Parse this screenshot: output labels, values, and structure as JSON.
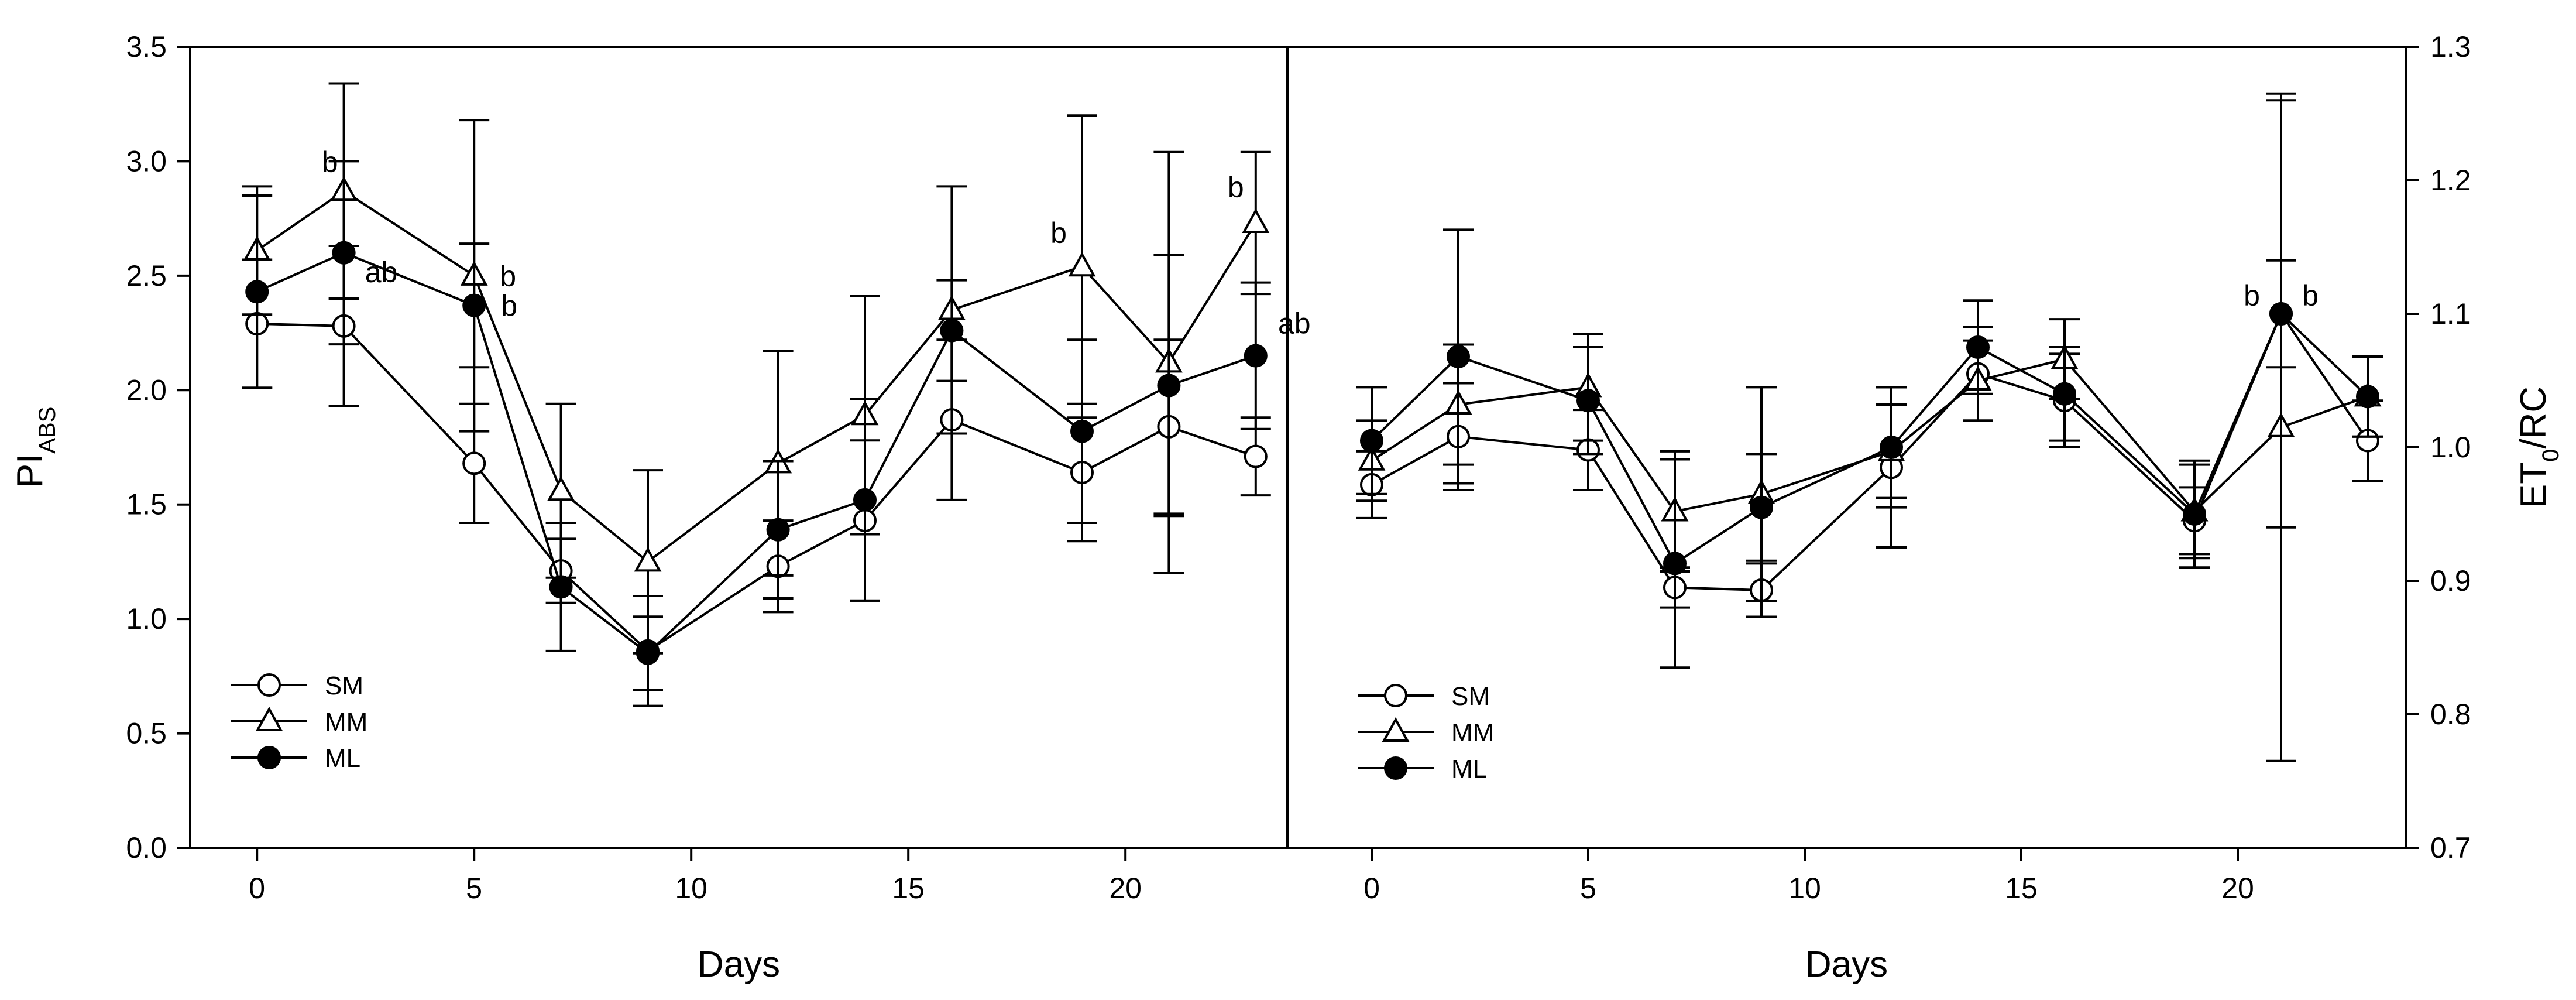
{
  "chart_data": [
    {
      "type": "line",
      "panel": "left",
      "ylabel_main": "PI",
      "ylabel_sub": "ABS",
      "xlabel": "Days",
      "xlim": [
        -1,
        24
      ],
      "ylim": [
        0,
        3.5
      ],
      "x_ticks": [
        0,
        5,
        10,
        15,
        20
      ],
      "y_ticks": [
        "0.0",
        "0.5",
        "1.0",
        "1.5",
        "2.0",
        "2.5",
        "3.0",
        "3.5"
      ],
      "x": [
        0,
        2,
        5,
        7,
        9,
        12,
        14,
        16,
        19,
        21,
        23
      ],
      "series": [
        {
          "name": "SM",
          "marker": "open-circle",
          "values": [
            2.29,
            2.28,
            1.68,
            1.21,
            0.86,
            1.23,
            1.43,
            1.87,
            1.64,
            1.84,
            1.71
          ],
          "errors": [
            0.28,
            0.35,
            0.26,
            0.14,
            0.24,
            0.2,
            0.35,
            0.35,
            0.3,
            0.38,
            0.17
          ]
        },
        {
          "name": "MM",
          "marker": "open-triangle",
          "values": [
            2.61,
            2.87,
            2.5,
            1.56,
            1.25,
            1.68,
            1.89,
            2.35,
            2.54,
            2.12,
            2.73
          ],
          "errors": [
            0.28,
            0.47,
            0.68,
            0.38,
            0.4,
            0.49,
            0.52,
            0.54,
            0.66,
            0.92,
            0.31
          ]
        },
        {
          "name": "ML",
          "marker": "filled-circle",
          "values": [
            2.43,
            2.6,
            2.37,
            1.14,
            0.85,
            1.39,
            1.52,
            2.26,
            1.82,
            2.02,
            2.15
          ],
          "errors": [
            0.42,
            0.4,
            0.27,
            0.28,
            0.16,
            0.3,
            0.44,
            0.22,
            0.4,
            0.57,
            0.32
          ]
        }
      ],
      "annotations": [
        {
          "text": "b",
          "x": 2,
          "series": "MM"
        },
        {
          "text": "ab",
          "x": 2,
          "series": "ML"
        },
        {
          "text": "b",
          "x": 5,
          "series": "MM"
        },
        {
          "text": "b",
          "x": 5,
          "series": "ML"
        },
        {
          "text": "b",
          "x": 19,
          "series": "MM"
        },
        {
          "text": "b",
          "x": 23,
          "series": "MM"
        },
        {
          "text": "ab",
          "x": 23,
          "series": "ML"
        }
      ],
      "legend": {
        "position": "bottom-left",
        "entries": [
          "SM",
          "MM",
          "ML"
        ]
      }
    },
    {
      "type": "line",
      "panel": "right",
      "ylabel_main": "ET",
      "ylabel_sub": "0",
      "ylabel_tail": "/RC",
      "xlabel": "Days",
      "xlim": [
        -1,
        24
      ],
      "ylim": [
        0.7,
        1.3
      ],
      "x_ticks": [
        0,
        5,
        10,
        15,
        20
      ],
      "y_ticks": [
        "0.7",
        "0.8",
        "0.9",
        "1.0",
        "1.1",
        "1.2",
        "1.3"
      ],
      "x": [
        0,
        2,
        5,
        7,
        9,
        12,
        14,
        16,
        19,
        21,
        23
      ],
      "series": [
        {
          "name": "SM",
          "marker": "open-circle",
          "values": [
            0.972,
            1.008,
            0.998,
            0.895,
            0.893,
            0.985,
            1.055,
            1.035,
            0.945,
            1.1,
            1.005
          ],
          "errors": [
            0.025,
            0.04,
            0.03,
            0.015,
            0.02,
            0.06,
            0.035,
            0.035,
            0.025,
            0.04,
            0.03
          ]
        },
        {
          "name": "MM",
          "marker": "open-triangle",
          "values": [
            0.99,
            1.032,
            1.045,
            0.952,
            0.965,
            0.997,
            1.05,
            1.066,
            0.952,
            1.015,
            1.038
          ],
          "errors": [
            0.03,
            0.045,
            0.04,
            0.045,
            0.08,
            0.035,
            0.03,
            0.03,
            0.035,
            0.25,
            0.03
          ]
        },
        {
          "name": "ML",
          "marker": "filled-circle",
          "values": [
            1.005,
            1.068,
            1.035,
            0.913,
            0.955,
            1.0,
            1.075,
            1.04,
            0.95,
            1.1,
            1.038
          ],
          "errors": [
            0.04,
            0.095,
            0.04,
            0.078,
            0.04,
            0.045,
            0.035,
            0.035,
            0.04,
            0.16,
            0.03
          ]
        }
      ],
      "annotations": [
        {
          "text": "b",
          "x": 21,
          "side": "left"
        },
        {
          "text": "b",
          "x": 21,
          "side": "right"
        }
      ],
      "legend": {
        "position": "bottom-left",
        "entries": [
          "SM",
          "MM",
          "ML"
        ]
      }
    }
  ]
}
